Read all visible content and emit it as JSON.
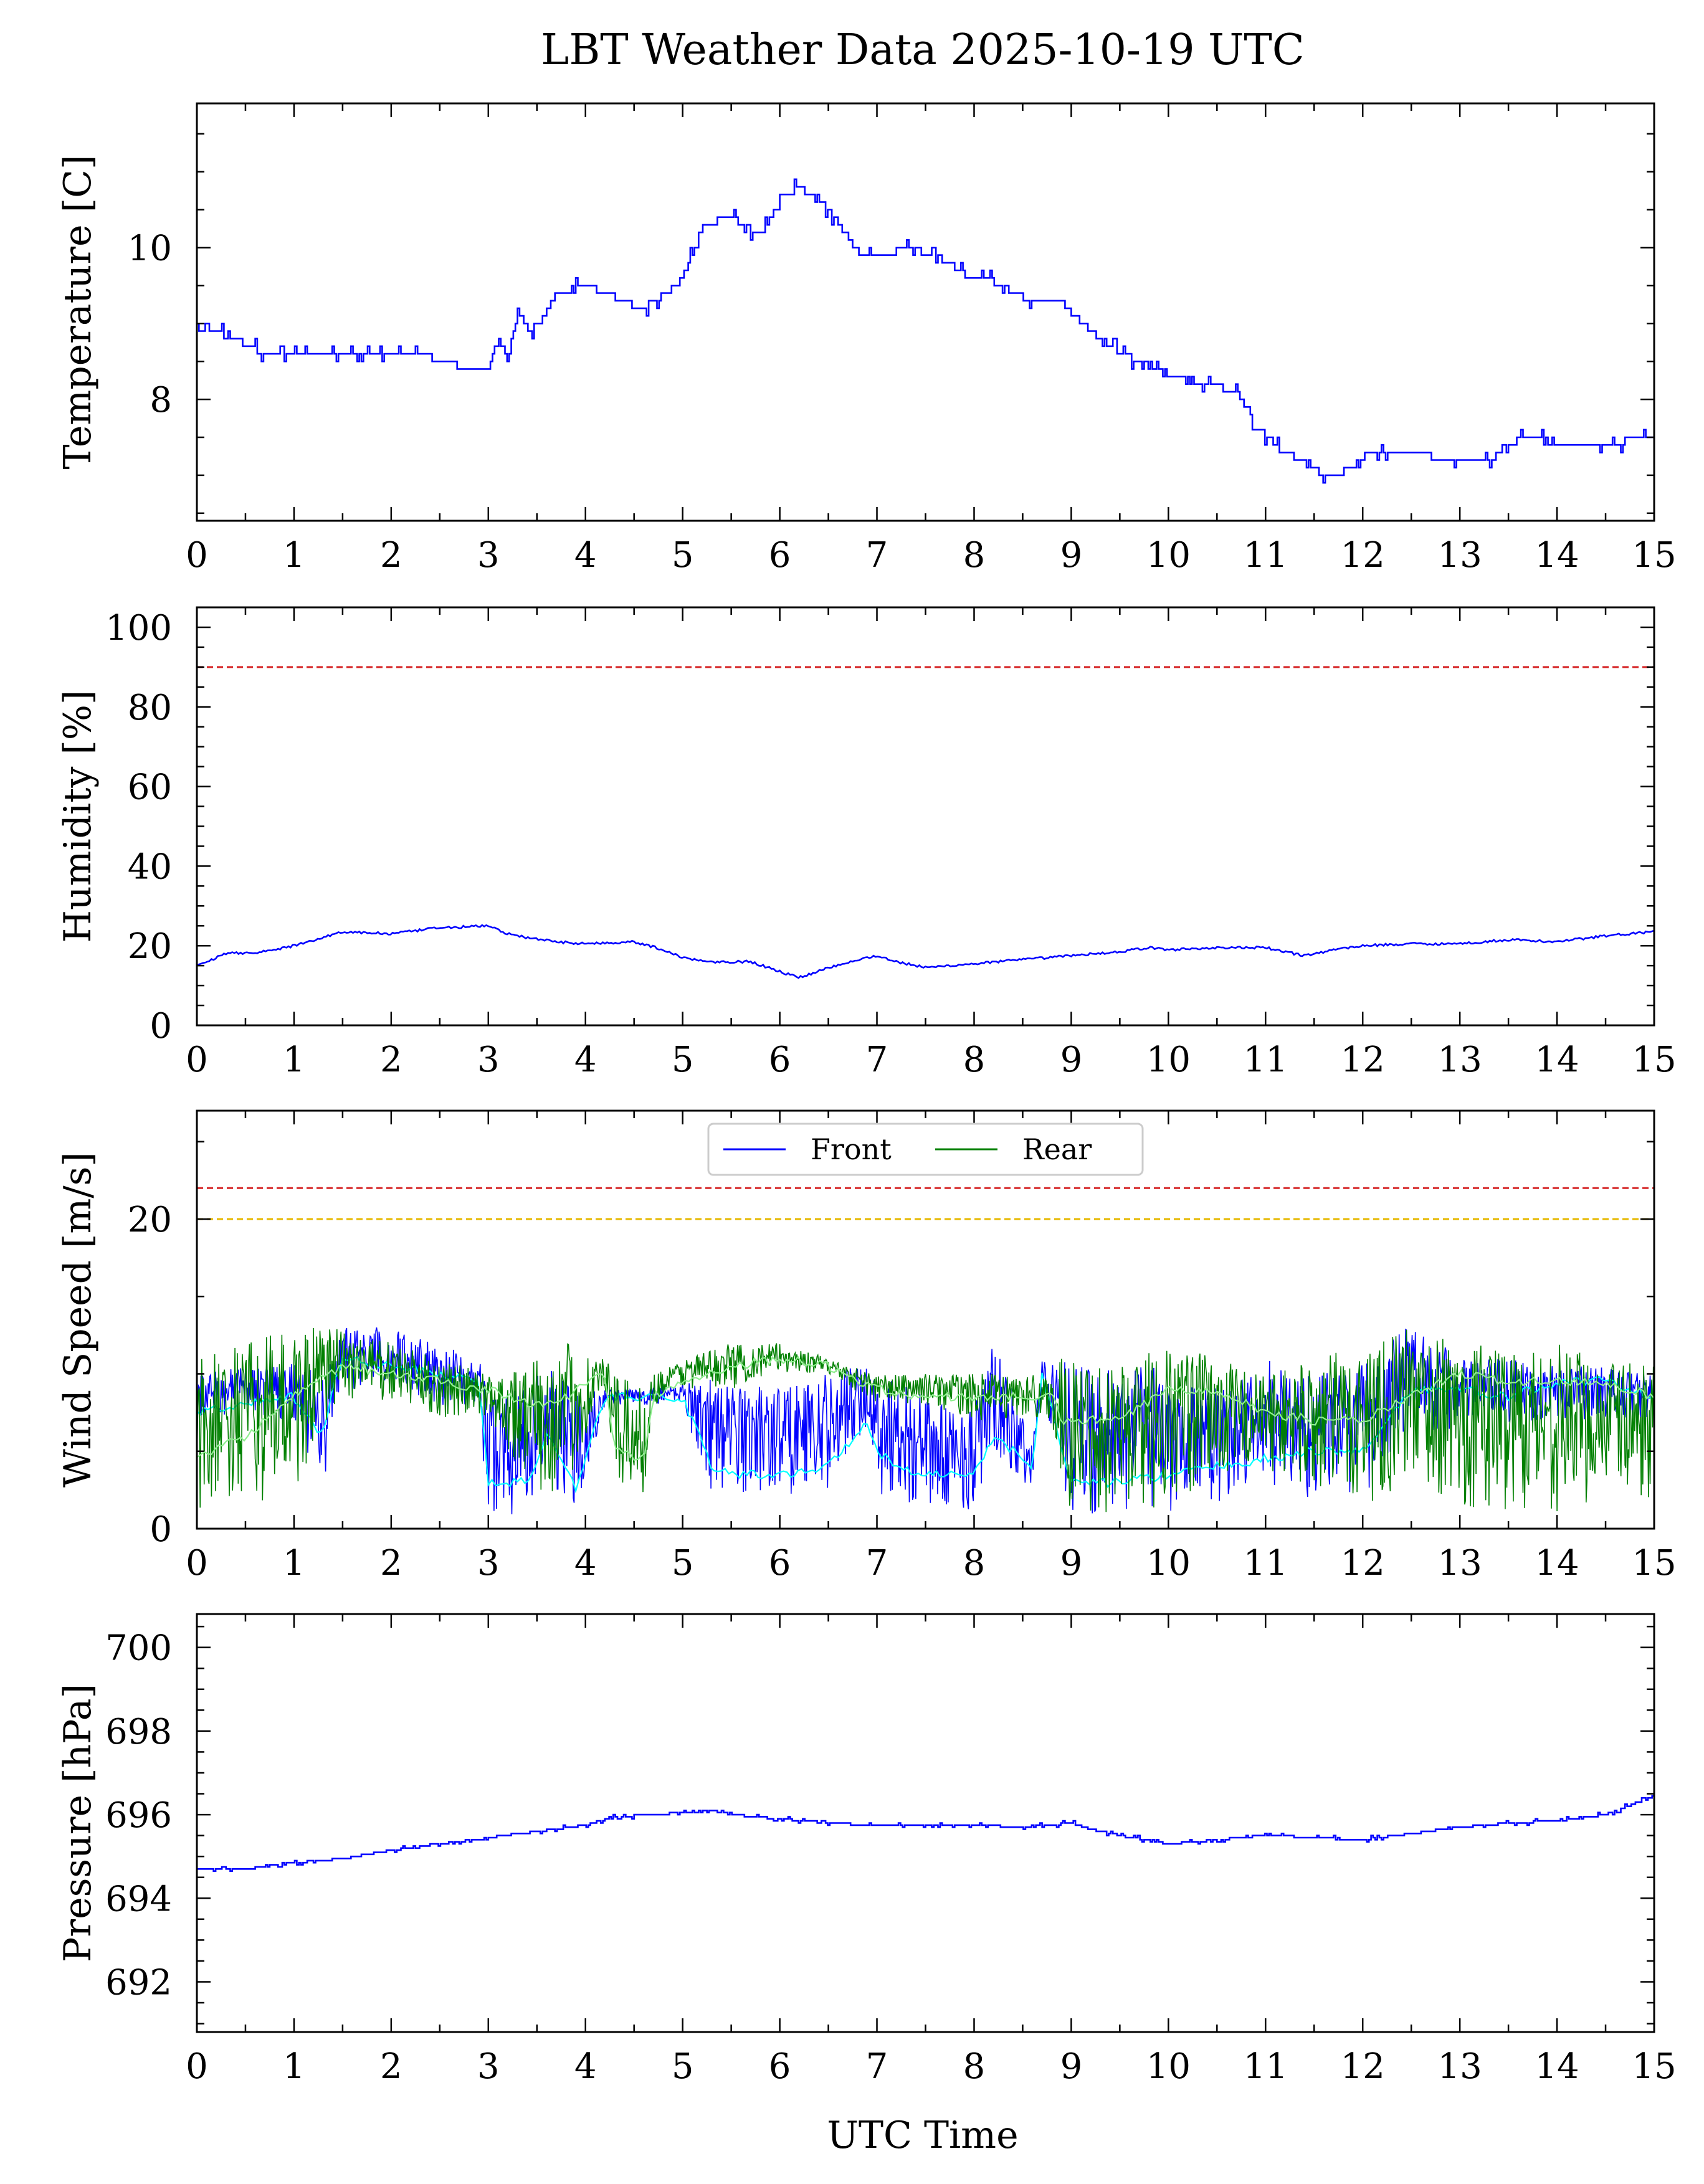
{
  "colors": {
    "front": "#0000ff",
    "rear": "#008000",
    "front_avg": "#00ffff",
    "rear_avg": "#90ee90",
    "limit_red": "#d62728",
    "limit_yellow": "#e6b800"
  },
  "chart_data": [
    {
      "type": "line",
      "title": "LBT Weather Data 2025-10-19 UTC",
      "xlabel": "",
      "ylabel": "Temperature [C]",
      "xlim": [
        0,
        15
      ],
      "ylim": [
        6.4,
        11.9
      ],
      "xticks": [
        "0",
        "1",
        "2",
        "3",
        "4",
        "5",
        "6",
        "7",
        "8",
        "9",
        "10",
        "11",
        "12",
        "13",
        "14",
        "15"
      ],
      "yticks": [
        {
          "value": 8,
          "label": "8"
        },
        {
          "value": 10,
          "label": "10"
        }
      ],
      "hlines": [],
      "series": [
        {
          "name": "Temperature",
          "color": "#0000ff",
          "step": true,
          "x": [
            0,
            0.3,
            0.7,
            1.0,
            1.5,
            2.0,
            2.4,
            2.8,
            3.0,
            3.1,
            3.2,
            3.3,
            3.45,
            3.7,
            4.0,
            4.4,
            4.6,
            5.0,
            5.2,
            5.5,
            5.8,
            6.0,
            6.2,
            6.5,
            6.8,
            7.1,
            7.3,
            7.6,
            7.9,
            8.2,
            8.5,
            8.9,
            9.2,
            9.5,
            9.8,
            10.0,
            10.4,
            10.7,
            10.9,
            11.1,
            11.4,
            11.7,
            12.0,
            12.5,
            12.8,
            13.3,
            13.6,
            13.9,
            14.3,
            14.7,
            15.0
          ],
          "y": [
            8.95,
            8.85,
            8.6,
            8.6,
            8.6,
            8.65,
            8.55,
            8.4,
            8.4,
            8.8,
            8.5,
            9.2,
            8.8,
            9.4,
            9.5,
            9.3,
            9.15,
            9.6,
            10.3,
            10.4,
            10.15,
            10.65,
            10.8,
            10.5,
            9.95,
            9.9,
            10.0,
            9.9,
            9.65,
            9.55,
            9.35,
            9.25,
            8.9,
            8.6,
            8.45,
            8.3,
            8.2,
            8.1,
            7.65,
            7.4,
            7.15,
            6.95,
            7.25,
            7.35,
            7.2,
            7.2,
            7.5,
            7.45,
            7.35,
            7.45,
            7.5
          ]
        }
      ]
    },
    {
      "type": "line",
      "title": "",
      "xlabel": "",
      "ylabel": "Humidity [%]",
      "xlim": [
        0,
        15
      ],
      "ylim": [
        0,
        105
      ],
      "xticks": [
        "0",
        "1",
        "2",
        "3",
        "4",
        "5",
        "6",
        "7",
        "8",
        "9",
        "10",
        "11",
        "12",
        "13",
        "14",
        "15"
      ],
      "yticks": [
        {
          "value": 0,
          "label": "0"
        },
        {
          "value": 20,
          "label": "20"
        },
        {
          "value": 40,
          "label": "40"
        },
        {
          "value": 60,
          "label": "60"
        },
        {
          "value": 80,
          "label": "80"
        },
        {
          "value": 100,
          "label": "100"
        }
      ],
      "hlines": [
        {
          "value": 90,
          "color": "#d62728"
        }
      ],
      "series": [
        {
          "name": "Humidity",
          "color": "#0000ff",
          "x": [
            0,
            0.3,
            0.7,
            1.0,
            1.5,
            2.0,
            2.5,
            3.0,
            3.2,
            3.4,
            3.7,
            4.0,
            4.5,
            4.8,
            5.0,
            5.3,
            5.7,
            6.0,
            6.2,
            6.5,
            6.8,
            7.0,
            7.2,
            7.5,
            8.0,
            8.5,
            9.0,
            9.5,
            9.8,
            10.0,
            10.5,
            11.0,
            11.4,
            11.7,
            12.0,
            12.5,
            13.0,
            13.5,
            14.0,
            14.5,
            15.0
          ],
          "y": [
            15,
            18,
            18.5,
            20,
            23.5,
            23,
            24.5,
            25,
            23,
            22,
            21,
            20.5,
            21,
            19,
            17,
            16,
            16,
            13.5,
            12,
            14.5,
            16.5,
            17.5,
            16,
            14.5,
            15.5,
            16.5,
            17.5,
            18.5,
            19.5,
            19,
            19.5,
            19.5,
            17.5,
            19,
            20,
            20.5,
            20.5,
            21.5,
            21,
            22.5,
            23.5
          ]
        }
      ]
    },
    {
      "type": "line",
      "title": "",
      "xlabel": "",
      "ylabel": "Wind Speed [m/s]",
      "xlim": [
        0,
        15
      ],
      "ylim": [
        0,
        27
      ],
      "xticks": [
        "0",
        "1",
        "2",
        "3",
        "4",
        "5",
        "6",
        "7",
        "8",
        "9",
        "10",
        "11",
        "12",
        "13",
        "14",
        "15"
      ],
      "yticks": [
        {
          "value": 0,
          "label": "0"
        },
        {
          "value": 20,
          "label": "20"
        }
      ],
      "hlines": [
        {
          "value": 22,
          "color": "#d62728"
        },
        {
          "value": 20,
          "color": "#e6b800"
        }
      ],
      "legend": {
        "entries": [
          "Front",
          "Rear"
        ],
        "location": "top-center"
      },
      "series": [
        {
          "name": "Front",
          "color": "#0000ff",
          "band": true,
          "x": [
            0,
            0.5,
            1.0,
            1.3,
            1.4,
            1.5,
            2.0,
            2.5,
            2.9,
            3.0,
            3.4,
            3.6,
            3.9,
            4.2,
            4.6,
            5.0,
            5.3,
            5.5,
            6.0,
            6.5,
            6.9,
            7.0,
            7.2,
            7.6,
            8.0,
            8.2,
            8.6,
            8.7,
            9.0,
            9.5,
            10.0,
            10.5,
            11.0,
            11.5,
            12.0,
            12.5,
            13.0,
            13.5,
            14.0,
            14.5,
            15.0
          ],
          "lo": [
            7,
            7.5,
            7,
            2,
            7,
            9,
            9,
            8,
            8,
            0.5,
            1,
            3,
            1,
            8,
            8,
            8,
            2,
            2,
            2,
            2.5,
            6,
            2,
            1.5,
            1,
            1,
            4,
            2,
            9,
            0.8,
            1,
            1,
            1.5,
            2,
            2,
            2,
            6,
            6.5,
            6.5,
            7,
            7,
            7
          ],
          "hi": [
            10,
            10.5,
            11,
            10,
            11,
            13,
            13,
            12,
            11,
            9,
            9,
            11,
            9,
            9,
            9,
            9.5,
            10,
            9.5,
            9.5,
            10,
            11,
            10,
            10,
            8,
            8,
            12,
            6,
            11,
            11,
            10,
            11,
            9,
            11,
            10,
            11,
            13.5,
            11,
            11,
            10.5,
            10.5,
            10
          ],
          "avg": [
            7.5,
            8,
            8.5,
            6,
            9,
            11,
            10.5,
            10,
            9.5,
            3,
            3,
            6,
            2.5,
            8.5,
            8.5,
            8.5,
            4,
            3.5,
            3.5,
            4,
            7,
            5,
            4,
            3.5,
            3.5,
            6,
            4,
            10,
            3,
            3,
            3.5,
            4,
            4.5,
            5,
            5,
            9,
            9,
            8.5,
            9.5,
            9.5,
            8.5
          ]
        },
        {
          "name": "Rear",
          "color": "#008000",
          "band": true,
          "x": [
            0,
            0.5,
            1.0,
            1.5,
            2.0,
            2.5,
            3.0,
            3.5,
            3.8,
            4.2,
            4.3,
            4.6,
            4.7,
            5.0,
            5.5,
            6.0,
            6.5,
            7.0,
            7.5,
            8.0,
            8.5,
            8.8,
            8.9,
            9.5,
            10.0,
            10.5,
            11.0,
            11.5,
            12.0,
            12.5,
            13.0,
            13.5,
            14.0,
            14.5,
            15.0
          ],
          "lo": [
            0.8,
            1,
            2,
            8,
            8,
            7,
            7,
            2,
            2,
            9,
            2,
            2,
            8,
            9,
            9,
            10,
            10,
            8,
            8,
            7,
            7,
            7,
            1,
            1,
            1,
            3,
            4,
            2,
            1,
            3,
            1,
            1,
            1,
            2,
            2
          ],
          "hi": [
            11,
            12,
            13,
            13,
            12,
            11,
            10,
            11,
            12,
            11,
            10,
            9,
            10,
            11,
            12,
            12,
            11,
            10,
            10,
            10,
            10,
            10,
            11,
            11,
            12,
            11,
            10,
            11,
            12,
            13,
            12,
            12,
            12,
            11,
            10.5
          ],
          "avg": [
            4.5,
            6,
            8.5,
            10.5,
            10,
            9.5,
            9,
            8,
            8.5,
            10,
            5,
            4.5,
            8.5,
            9.5,
            10.5,
            11,
            10.5,
            9,
            8.5,
            8.5,
            8.5,
            8.5,
            7,
            7,
            9,
            9,
            7.5,
            7,
            7,
            8.5,
            10,
            9.5,
            9.5,
            9.5,
            8.5
          ]
        }
      ]
    },
    {
      "type": "line",
      "title": "",
      "xlabel": "UTC Time",
      "ylabel": "Pressure [hPa]",
      "xlim": [
        0,
        15
      ],
      "ylim": [
        690.8,
        700.8
      ],
      "xticks": [
        "0",
        "1",
        "2",
        "3",
        "4",
        "5",
        "6",
        "7",
        "8",
        "9",
        "10",
        "11",
        "12",
        "13",
        "14",
        "15"
      ],
      "yticks": [
        {
          "value": 692,
          "label": "692"
        },
        {
          "value": 694,
          "label": "694"
        },
        {
          "value": 696,
          "label": "696"
        },
        {
          "value": 698,
          "label": "698"
        },
        {
          "value": 700,
          "label": "700"
        }
      ],
      "hlines": [],
      "series": [
        {
          "name": "Pressure",
          "color": "#0000ff",
          "step": true,
          "x": [
            0,
            0.5,
            1.0,
            1.5,
            2.0,
            2.5,
            3.0,
            3.5,
            4.0,
            4.3,
            4.7,
            5.0,
            5.3,
            5.7,
            6.0,
            6.5,
            7.0,
            7.5,
            8.0,
            8.5,
            9.0,
            9.2,
            9.5,
            10.0,
            10.5,
            11.0,
            11.5,
            12.0,
            12.5,
            13.0,
            13.5,
            14.0,
            14.5,
            15.0
          ],
          "y": [
            694.7,
            694.7,
            694.85,
            694.95,
            695.15,
            695.3,
            695.45,
            695.6,
            695.75,
            695.95,
            696.0,
            696.05,
            696.1,
            695.95,
            695.9,
            695.8,
            695.75,
            695.75,
            695.75,
            695.7,
            695.8,
            695.65,
            695.5,
            695.3,
            695.4,
            695.5,
            695.45,
            695.4,
            695.55,
            695.7,
            695.8,
            695.85,
            696.0,
            696.45
          ]
        }
      ]
    }
  ]
}
